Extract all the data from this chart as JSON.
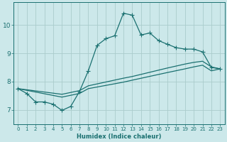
{
  "xlabel": "Humidex (Indice chaleur)",
  "ylabel": "",
  "bg_color": "#cce8ea",
  "grid_color": "#aacccc",
  "line_color": "#1a7070",
  "xlim": [
    -0.5,
    23.5
  ],
  "ylim": [
    6.5,
    10.8
  ],
  "xticks": [
    0,
    1,
    2,
    3,
    4,
    5,
    6,
    7,
    8,
    9,
    10,
    11,
    12,
    13,
    14,
    15,
    16,
    17,
    18,
    19,
    20,
    21,
    22,
    23
  ],
  "yticks": [
    7,
    8,
    9,
    10
  ],
  "line1_x": [
    0,
    1,
    2,
    3,
    4,
    5,
    6,
    7,
    8,
    9,
    10,
    11,
    12,
    13,
    14,
    15,
    16,
    17,
    18,
    19,
    20,
    21,
    22,
    23
  ],
  "line1_y": [
    7.75,
    7.58,
    7.28,
    7.28,
    7.2,
    6.98,
    7.12,
    7.65,
    8.38,
    9.28,
    9.52,
    9.62,
    10.42,
    10.35,
    9.65,
    9.72,
    9.45,
    9.32,
    9.2,
    9.15,
    9.15,
    9.05,
    8.5,
    8.45
  ],
  "line2_x": [
    0,
    5,
    7,
    8,
    12,
    13,
    17,
    19,
    20,
    21,
    22,
    23
  ],
  "line2_y": [
    7.75,
    7.55,
    7.68,
    7.85,
    8.12,
    8.18,
    8.48,
    8.62,
    8.68,
    8.72,
    8.52,
    8.45
  ],
  "line3_x": [
    0,
    5,
    7,
    8,
    12,
    13,
    17,
    19,
    20,
    21,
    22,
    23
  ],
  "line3_y": [
    7.75,
    7.45,
    7.58,
    7.75,
    7.98,
    8.05,
    8.32,
    8.45,
    8.52,
    8.58,
    8.38,
    8.45
  ]
}
